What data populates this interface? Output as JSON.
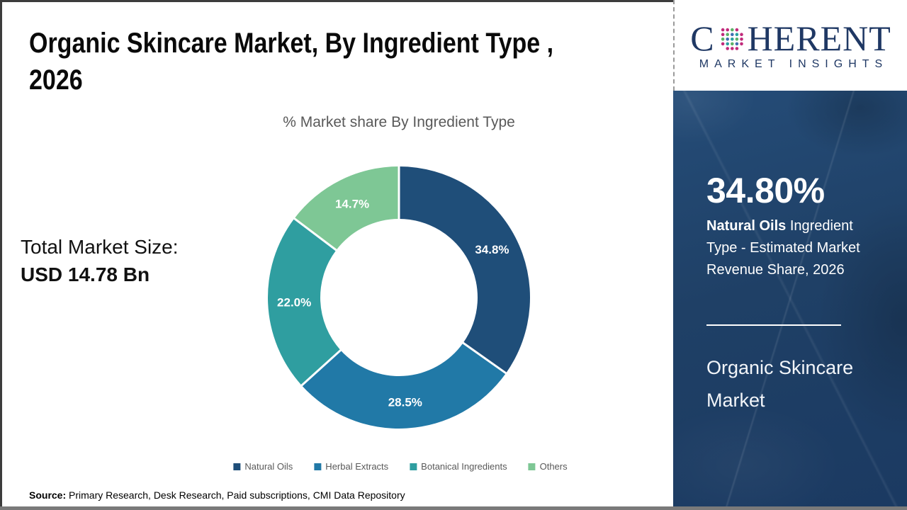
{
  "header": {
    "title_line1": "Organic Skincare Market, By Ingredient Type ,",
    "title_line2": "2026"
  },
  "total": {
    "label": "Total Market Size:",
    "value": "USD 14.78 Bn"
  },
  "chart_data": {
    "type": "pie",
    "subtype": "donut",
    "title": "% Market share By Ingredient Type",
    "categories": [
      "Natural Oils",
      "Herbal Extracts",
      "Botanical Ingredients",
      "Others"
    ],
    "values": [
      34.8,
      28.5,
      22.0,
      14.7
    ],
    "labels": [
      "34.8%",
      "28.5%",
      "22.0%",
      "14.7%"
    ],
    "colors": [
      "#1F4E79",
      "#2179A7",
      "#2F9EA0",
      "#7EC795"
    ],
    "start_angle_deg": 0,
    "direction": "clockwise",
    "legend_position": "bottom",
    "label_color": "#FFFFFF"
  },
  "side_panel": {
    "highlight_value": "34.80%",
    "highlight_bold": "Natural Oils",
    "highlight_rest": " Ingredient Type - Estimated Market Revenue Share, 2026",
    "panel_title": "Organic Skincare Market",
    "bg_color": "#1E4066"
  },
  "logo": {
    "letter_c": "C",
    "letters_rest": "HERENT",
    "tagline": "MARKET INSIGHTS",
    "navy": "#1F3864"
  },
  "footer": {
    "source_label": "Source:",
    "source_text": " Primary Research, Desk Research, Paid subscriptions, CMI Data Repository"
  }
}
